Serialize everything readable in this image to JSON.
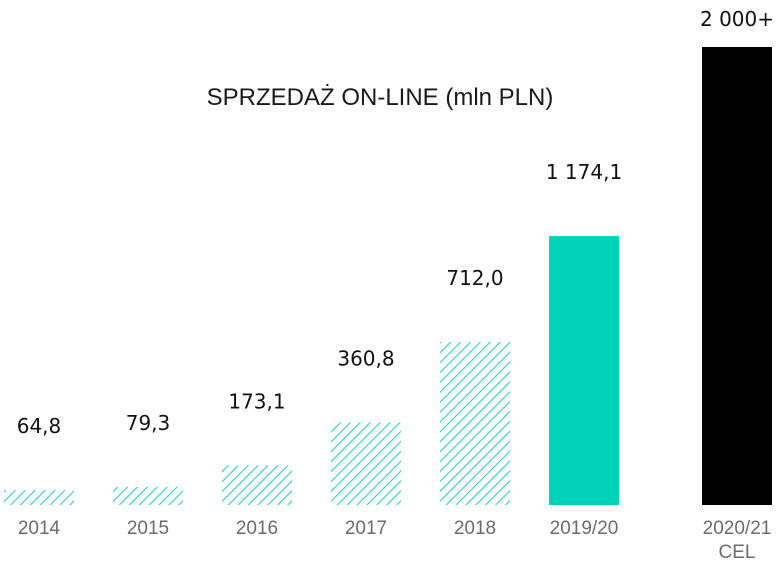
{
  "chart_data": {
    "type": "bar",
    "title": "SPRZEDAŻ ON-LINE (mln PLN)",
    "xlabel": "",
    "ylabel": "",
    "ylim": [
      0,
      2000
    ],
    "categories": [
      "2014",
      "2015",
      "2016",
      "2017",
      "2018",
      "2019/20",
      "2020/21"
    ],
    "category_sublabels": [
      "",
      "",
      "",
      "",
      "",
      "",
      "CEL"
    ],
    "values": [
      64.8,
      79.3,
      173.1,
      360.8,
      712.0,
      1174.1,
      2000
    ],
    "value_labels": [
      "64,8",
      "79,3",
      "173,1",
      "360,8",
      "712,0",
      "1 174,1",
      "2 000+"
    ],
    "bar_styles": [
      "hatched",
      "hatched",
      "hatched",
      "hatched",
      "hatched",
      "solid",
      "solid"
    ],
    "bar_colors": [
      "#2fcfb8",
      "#2fcfb8",
      "#2fcfb8",
      "#2fcfb8",
      "#2fcfb8",
      "#00d4b8",
      "#000000"
    ],
    "grid": false,
    "legend": "none"
  }
}
